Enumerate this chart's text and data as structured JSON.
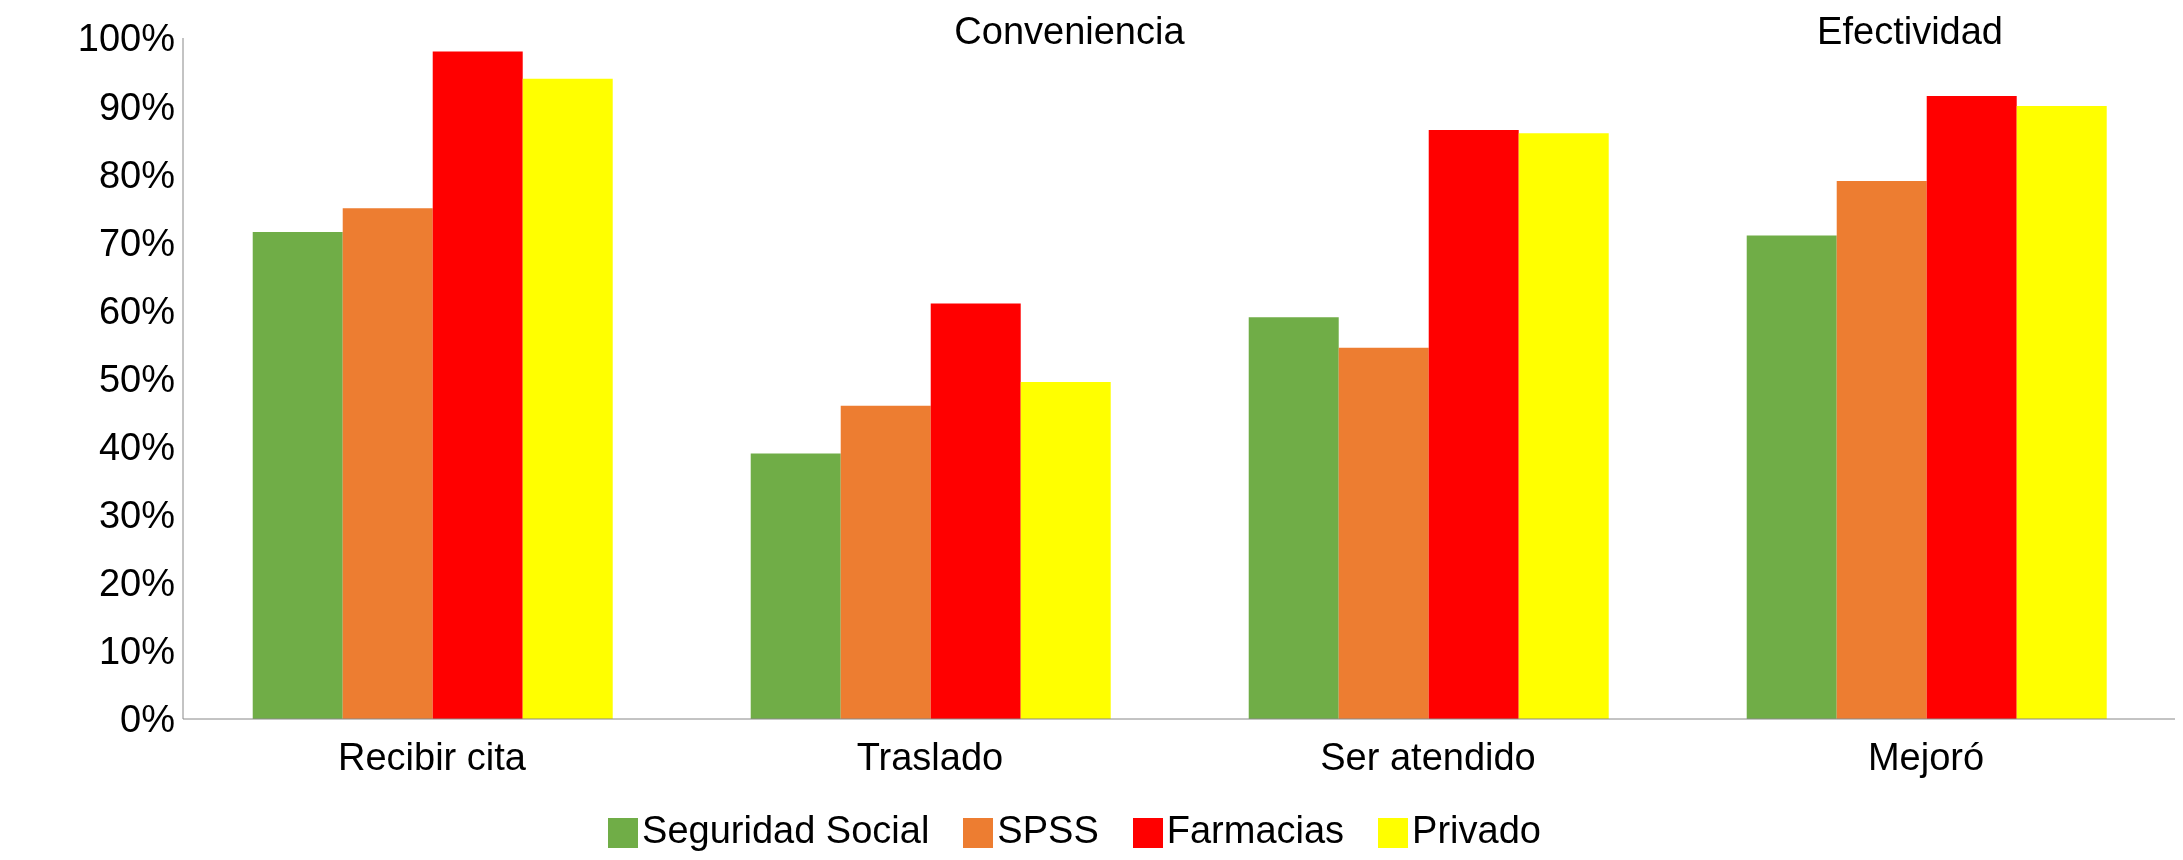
{
  "chart_data": {
    "type": "bar",
    "categories": [
      "Recibir cita",
      "Traslado",
      "Ser atendido",
      "Mejoró"
    ],
    "series": [
      {
        "name": "Seguridad Social",
        "color": "#70ad47",
        "values": [
          71.5,
          39,
          59,
          71
        ]
      },
      {
        "name": "SPSS",
        "color": "#ed7d31",
        "values": [
          75,
          46,
          54.5,
          79
        ]
      },
      {
        "name": "Farmacias",
        "color": "#ff0000",
        "values": [
          98,
          61,
          86.5,
          91.5
        ]
      },
      {
        "name": "Privado",
        "color": "#ffff00",
        "values": [
          94,
          49.5,
          86,
          90
        ]
      }
    ],
    "ylim": [
      0,
      100
    ],
    "yticks": [
      {
        "value": 0,
        "label": "0%"
      },
      {
        "value": 10,
        "label": "10%"
      },
      {
        "value": 20,
        "label": "20%"
      },
      {
        "value": 30,
        "label": "30%"
      },
      {
        "value": 40,
        "label": "40%"
      },
      {
        "value": 50,
        "label": "50%"
      },
      {
        "value": 60,
        "label": "60%"
      },
      {
        "value": 70,
        "label": "70%"
      },
      {
        "value": 80,
        "label": "80%"
      },
      {
        "value": 90,
        "label": "90%"
      },
      {
        "value": 100,
        "label": "100%"
      }
    ],
    "annotations": [
      "Conveniencia",
      "Efectividad"
    ],
    "grid": false,
    "legend": "bottom"
  }
}
